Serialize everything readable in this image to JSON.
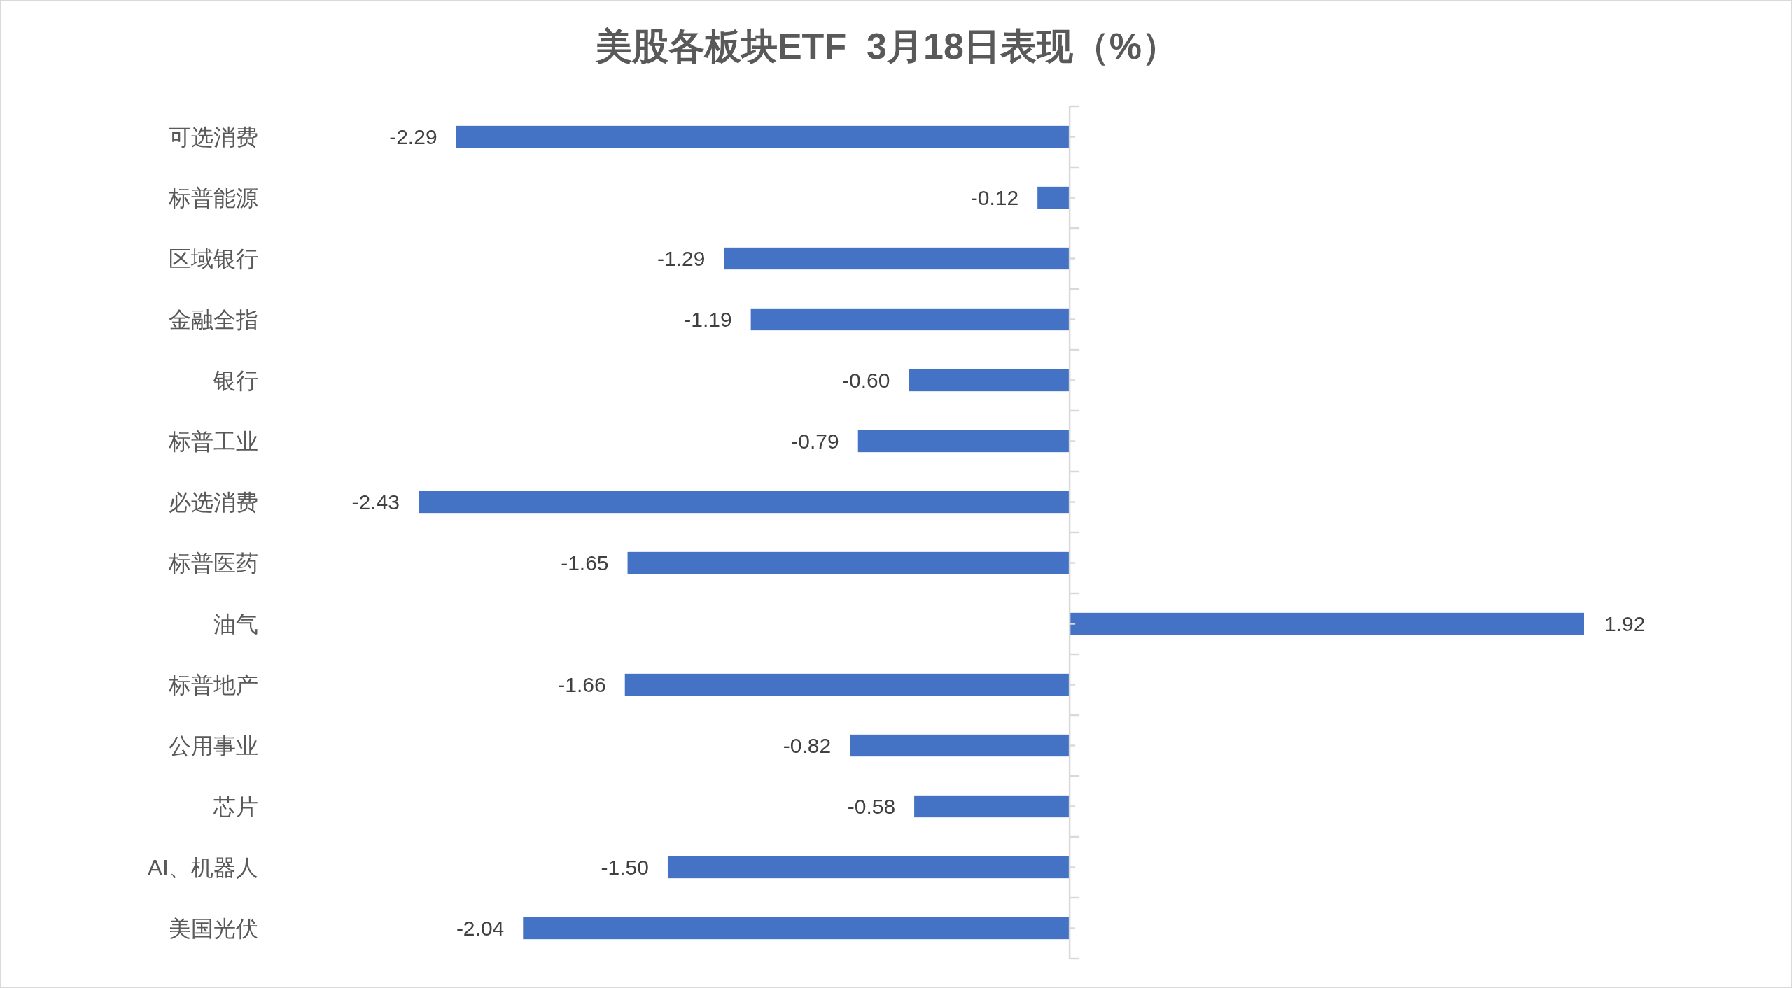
{
  "chart_data": {
    "type": "bar",
    "orientation": "horizontal",
    "title": "美股各板块ETF  3月18日表现（%）",
    "categories": [
      "可选消费",
      "标普能源",
      "区域银行",
      "金融全指",
      "银行",
      "标普工业",
      "必选消费",
      "标普医药",
      "油气",
      "标普地产",
      "公用事业",
      "芯片",
      "AI、机器人",
      "美国光伏"
    ],
    "values": [
      -2.29,
      -0.12,
      -1.29,
      -1.19,
      -0.6,
      -0.79,
      -2.43,
      -1.65,
      1.92,
      -1.66,
      -0.82,
      -0.58,
      -1.5,
      -2.04
    ],
    "value_labels": [
      "-2.29",
      "-0.12",
      "-1.29",
      "-1.19",
      "-0.60",
      "-0.79",
      "-2.43",
      "-1.65",
      "1.92",
      "-1.66",
      "-0.82",
      "-0.58",
      "-1.50",
      "-2.04"
    ],
    "color": "#4472c4",
    "tick_labels": "y"
  }
}
